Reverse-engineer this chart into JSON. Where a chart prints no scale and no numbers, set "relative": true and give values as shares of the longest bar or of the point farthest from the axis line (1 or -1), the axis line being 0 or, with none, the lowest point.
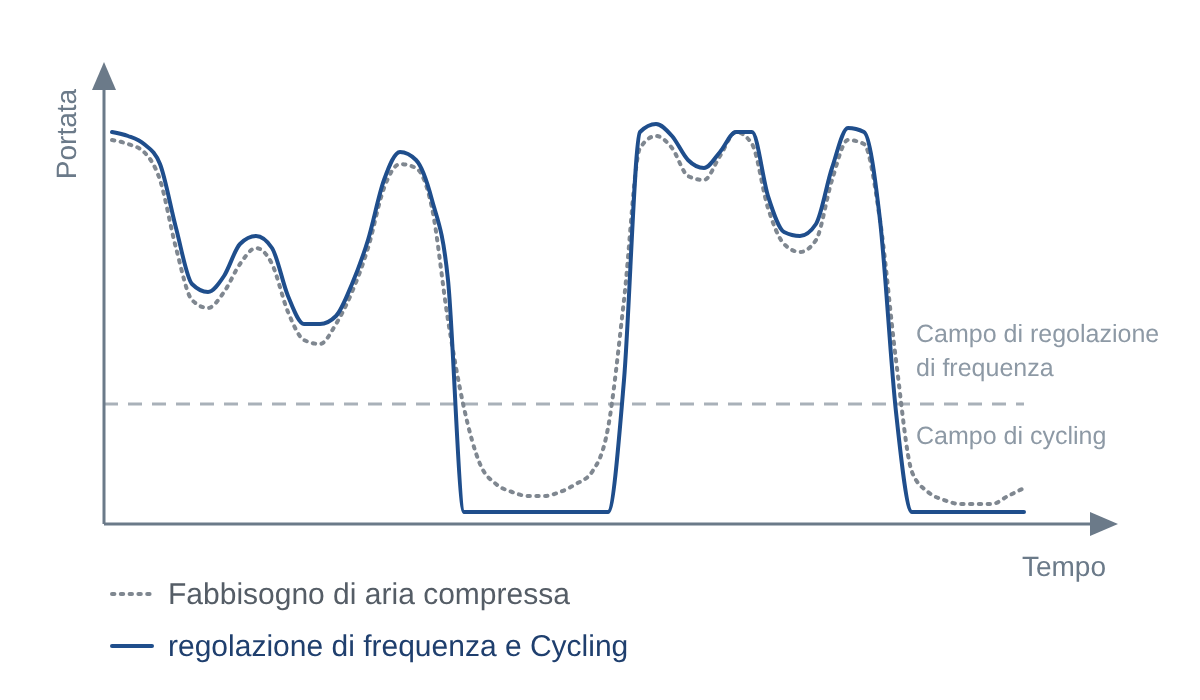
{
  "chart_data": {
    "type": "line",
    "relative": true,
    "xlabel": "Tempo",
    "ylabel": "Portata",
    "categories": [
      null,
      null,
      null,
      null,
      null,
      null,
      null,
      null,
      null,
      null,
      null,
      null,
      null,
      null,
      null,
      null,
      null,
      null,
      null,
      null,
      null,
      null,
      null,
      null,
      null,
      null,
      null,
      null,
      null,
      null,
      null,
      null,
      null,
      null,
      null,
      null,
      null,
      null,
      null,
      null,
      null,
      null,
      null,
      null,
      null,
      null,
      null,
      null,
      null,
      null,
      null,
      null,
      null,
      null,
      null,
      null,
      null,
      null
    ],
    "series": [
      {
        "name": "Fabbisogno di aria compressa",
        "color": "#7f8790",
        "line_style": "dotted",
        "values": [
          0.96,
          0.95,
          0.93,
          0.86,
          0.69,
          0.56,
          0.54,
          0.58,
          0.65,
          0.69,
          0.65,
          0.53,
          0.46,
          0.45,
          0.5,
          0.58,
          0.69,
          0.84,
          0.9,
          0.89,
          0.79,
          0.51,
          0.29,
          0.15,
          0.1,
          0.08,
          0.07,
          0.07,
          0.08,
          0.1,
          0.13,
          0.24,
          0.56,
          0.94,
          0.97,
          0.94,
          0.87,
          0.86,
          0.92,
          0.98,
          0.95,
          0.79,
          0.7,
          0.68,
          0.71,
          0.86,
          0.96,
          0.95,
          0.76,
          0.41,
          0.13,
          0.08,
          0.06,
          0.05,
          0.05,
          0.05,
          0.07,
          0.09
        ]
      },
      {
        "name": "regolazione di frequenza e Cycling",
        "color": "#1f4e8c",
        "line_style": "solid",
        "values": [
          0.98,
          0.97,
          0.95,
          0.9,
          0.74,
          0.6,
          0.58,
          0.62,
          0.7,
          0.72,
          0.69,
          0.57,
          0.5,
          0.5,
          0.52,
          0.6,
          0.71,
          0.86,
          0.93,
          0.91,
          0.81,
          0.61,
          0.03,
          0.03,
          0.03,
          0.03,
          0.03,
          0.03,
          0.03,
          0.03,
          0.03,
          0.03,
          0.36,
          0.98,
          1,
          0.97,
          0.91,
          0.89,
          0.93,
          0.98,
          0.98,
          0.82,
          0.73,
          0.72,
          0.75,
          0.89,
          0.99,
          0.98,
          0.76,
          0.28,
          0.03,
          0.03,
          0.03,
          0.03,
          0.03,
          0.03,
          0.03,
          0.03
        ]
      }
    ],
    "ref_lines": [
      {
        "axis": "y",
        "value": 0.3,
        "color": "#a9b1b9",
        "line_style": "dashed"
      }
    ],
    "annotations": [
      "Campo di regolazione di frequenza",
      "Campo di cycling"
    ],
    "legend": "bottom left"
  }
}
